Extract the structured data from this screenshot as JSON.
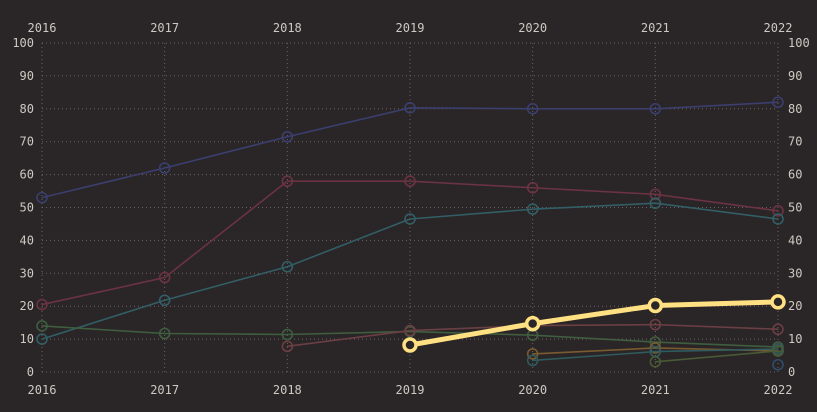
{
  "chart_data": {
    "type": "line",
    "x": [
      2016,
      2017,
      2018,
      2019,
      2020,
      2021,
      2022
    ],
    "x_tick_labels": [
      "2016",
      "2017",
      "2018",
      "2019",
      "2020",
      "2021",
      "2022"
    ],
    "y_tick_labels": [
      "0",
      "10",
      "20",
      "30",
      "40",
      "50",
      "60",
      "70",
      "80",
      "90",
      "100"
    ],
    "ylim": [
      0,
      100
    ],
    "grid": true,
    "legend": "none",
    "highlighted_series": 7,
    "series": [
      {
        "color": "#3a3f6e",
        "values": [
          53,
          62,
          71.5,
          80.3,
          80,
          80,
          82
        ]
      },
      {
        "color": "#6b3344",
        "values": [
          20.5,
          28.7,
          58,
          58,
          56,
          54,
          49
        ]
      },
      {
        "color": "#325e66",
        "values": [
          10,
          21.8,
          32,
          46.5,
          49.5,
          51.3,
          46.5
        ]
      },
      {
        "color": "#3f5e3f",
        "values": [
          14,
          11.7,
          11.4,
          12.3,
          11.2,
          9.1,
          7.6
        ]
      },
      {
        "color": "#6b3f44",
        "values": [
          null,
          null,
          7.8,
          12.6,
          14.1,
          14.4,
          13
        ]
      },
      {
        "color": "#7a5b30",
        "values": [
          null,
          null,
          null,
          null,
          5.5,
          7.3,
          6.4
        ]
      },
      {
        "color": "#2f5a5e",
        "values": [
          null,
          null,
          null,
          null,
          3.5,
          6.2,
          7
        ]
      },
      {
        "color": "#485a36",
        "values": [
          null,
          null,
          null,
          null,
          null,
          3.1,
          6.4
        ]
      },
      {
        "color": "#2f4d6b",
        "values": [
          null,
          null,
          null,
          null,
          null,
          null,
          2.2
        ]
      },
      {
        "color": "#ffe082",
        "values": [
          null,
          null,
          null,
          8.2,
          14.7,
          20.2,
          21.3
        ]
      }
    ],
    "highlight_color": "#ffe082",
    "grid_color": "#6b6466",
    "tick_color": "#cfc9c3"
  }
}
